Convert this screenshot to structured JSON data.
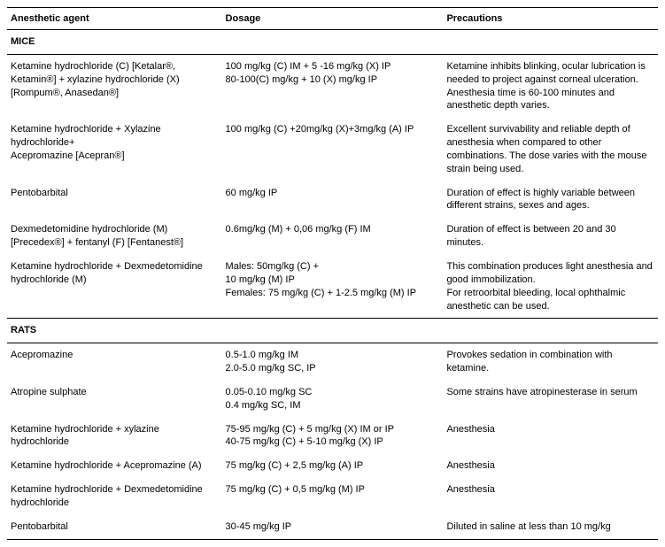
{
  "headers": {
    "agent": "Anesthetic agent",
    "dosage": "Dosage",
    "precautions": "Precautions"
  },
  "sections": {
    "mice": "MICE",
    "rats": "RATS"
  },
  "mice": [
    {
      "agent": "Ketamine hydrochloride (C) [Ketalar®, Ketamin®] + xylazine  hydrochloride (X) [Rompum®, Anasedan®]",
      "dosage": "100 mg/kg (C) IM + 5 -16 mg/kg (X) IP\n80-100(C) mg/kg + 10 (X) mg/kg IP",
      "precautions": "Ketamine inhibits blinking, ocular lubrication is needed to project against corneal ulceration. Anesthesia time is 60-100 minutes and anesthetic depth varies."
    },
    {
      "agent": "Ketamine hydrochloride + Xylazine hydrochloride+\nAcepromazine [Acepran®]",
      "dosage": "100 mg/kg (C) +20mg/kg (X)+3mg/kg (A) IP",
      "precautions": "Excellent survivability and reliable depth of anesthesia when compared to other combinations. The dose varies with the mouse strain being used."
    },
    {
      "agent": "Pentobarbital",
      "dosage": "60 mg/kg IP",
      "precautions": "Duration of effect is highly variable between different strains, sexes and ages."
    },
    {
      "agent": "Dexmedetomidine hydrochloride  (M) [Precedex®] + fentanyl  (F) [Fentanest®]",
      "dosage": "0.6mg/kg (M) +  0,06 mg/kg (F) IM",
      "precautions": "Duration of effect is between 20 and 30 minutes."
    },
    {
      "agent": "Ketamine hydrochloride + Dexmedetomidine hydrochloride (M)",
      "dosage": "Males: 50mg/kg (C) +\n10 mg/kg (M) IP\nFemales: 75 mg/kg (C) + 1-2.5 mg/kg (M) IP",
      "precautions": "This combination produces light anesthesia and good immobilization.\nFor retroorbital bleeding, local  ophthalmic anesthetic can be used."
    }
  ],
  "rats": [
    {
      "agent": "Acepromazine",
      "dosage": "0.5-1.0 mg/kg IM\n2.0-5.0 mg/kg SC, IP",
      "precautions": "Provokes sedation in combination with ketamine."
    },
    {
      "agent": "Atropine sulphate",
      "dosage": "0.05-0.10 mg/kg SC\n0.4 mg/kg SC, IM",
      "precautions": "Some strains have atropinesterase in serum"
    },
    {
      "agent": "Ketamine hydrochloride + xylazine hydrochloride",
      "dosage": "75-95 mg/kg (C) + 5 mg/kg (X) IM or IP\n40-75 mg/kg (C)  + 5-10 mg/kg (X) IP",
      "precautions": "Anesthesia"
    },
    {
      "agent": "Ketamine hydrochloride + Acepromazine (A)",
      "dosage": "75 mg/kg (C)  +  2,5 mg/kg (A) IP",
      "precautions": "Anesthesia"
    },
    {
      "agent": "Ketamine hydrochloride + Dexmedetomidine hydrochloride",
      "dosage": "75 mg/kg (C)  +  0,5 mg/kg (M) IP",
      "precautions": "Anesthesia"
    },
    {
      "agent": "Pentobarbital",
      "dosage": "30-45 mg/kg IP",
      "precautions": "Diluted in saline at less than 10 mg/kg"
    }
  ]
}
